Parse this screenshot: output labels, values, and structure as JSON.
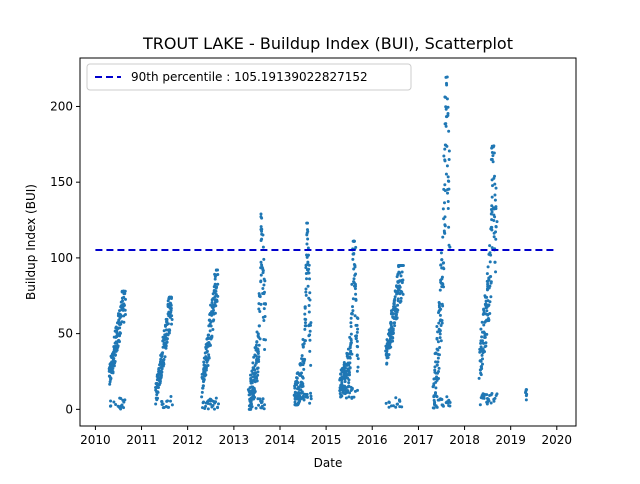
{
  "chart_data": {
    "type": "scatter",
    "title": "TROUT LAKE - Buildup Index (BUI), Scatterplot",
    "xlabel": "Date",
    "ylabel": "Buildup Index (BUI)",
    "x_type": "date",
    "xlim": [
      "2009-09-01",
      "2020-06-01"
    ],
    "ylim": [
      -11,
      232
    ],
    "x_ticks": [
      "2010",
      "2011",
      "2012",
      "2013",
      "2014",
      "2015",
      "2016",
      "2017",
      "2018",
      "2019",
      "2020"
    ],
    "y_ticks": [
      0,
      50,
      100,
      150,
      200
    ],
    "grid": false,
    "legend": {
      "placement": "top-left",
      "entries": [
        "90th percentile : 105.19139022827152"
      ]
    },
    "reference_line": {
      "label": "90th percentile : 105.19139022827152",
      "value": 105.19139022827152,
      "style": "dashed",
      "color": "#0000cc",
      "x_start": "2010-01-01",
      "x_end": "2019-12-31"
    },
    "marker_color": "#1f77b4",
    "seasons": [
      {
        "year": 2010,
        "start": "2010-04-20",
        "end": "2010-08-25",
        "first": 20,
        "last": 75,
        "min": 0,
        "max": 78
      },
      {
        "year": 2011,
        "start": "2011-04-25",
        "end": "2011-08-30",
        "first": 10,
        "last": 72,
        "min": 1,
        "max": 74
      },
      {
        "year": 2012,
        "start": "2012-04-25",
        "end": "2012-08-30",
        "first": 15,
        "last": 88,
        "min": 0,
        "max": 92
      },
      {
        "year": 2013,
        "start": "2013-05-01",
        "end": "2013-09-05",
        "first": 5,
        "last": 60,
        "min": 0,
        "max": 129
      },
      {
        "year": 2014,
        "start": "2014-04-25",
        "end": "2014-09-01",
        "first": 5,
        "last": 45,
        "min": 3,
        "max": 123
      },
      {
        "year": 2015,
        "start": "2015-04-20",
        "end": "2015-09-10",
        "first": 15,
        "last": 40,
        "min": 7,
        "max": 111
      },
      {
        "year": 2016,
        "start": "2016-04-20",
        "end": "2016-09-01",
        "first": 35,
        "last": 93,
        "min": 1,
        "max": 95
      },
      {
        "year": 2017,
        "start": "2017-05-01",
        "end": "2017-09-05",
        "first": 5,
        "last": 145,
        "min": 1,
        "max": 222
      },
      {
        "year": 2018,
        "start": "2018-05-01",
        "end": "2018-09-10",
        "first": 30,
        "last": 115,
        "min": 3,
        "max": 174
      },
      {
        "year": 2019,
        "start": "2019-04-30",
        "end": "2019-05-05",
        "first": 7,
        "last": 12,
        "min": 6,
        "max": 13
      }
    ]
  }
}
